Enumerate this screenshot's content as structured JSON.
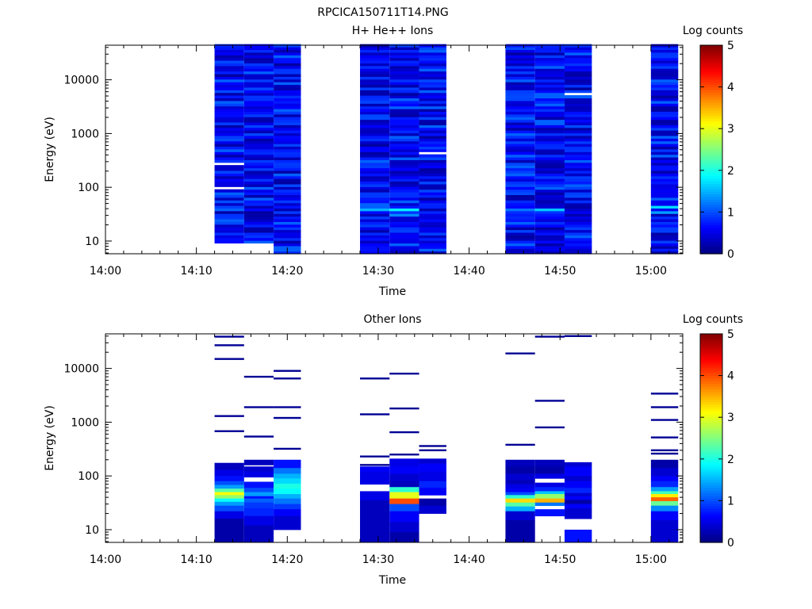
{
  "figure_title": "RPCICA150711T14.PNG",
  "chart_data": [
    {
      "type": "heatmap",
      "title": "H+ He++ Ions",
      "xlabel": "Time",
      "ylabel": "Energy (eV)",
      "y_scale": "log",
      "ylim": [
        5.8,
        44000
      ],
      "x_ticks": [
        "14:00",
        "14:10",
        "14:20",
        "14:30",
        "14:40",
        "14:50",
        "15:00"
      ],
      "y_ticks": [
        {
          "value": 10,
          "label": "10"
        },
        {
          "value": 100,
          "label": "100"
        },
        {
          "value": 1000,
          "label": "1000"
        },
        {
          "value": 10000,
          "label": "10000"
        }
      ],
      "colorbar": {
        "label": "Log counts",
        "min": 0,
        "max": 5,
        "ticks": [
          "0",
          "1",
          "2",
          "3",
          "4",
          "5"
        ]
      },
      "columns": [
        {
          "start": "14:12:00",
          "end": "14:15:15",
          "gaps": [
            [
              9.4,
              5.8
            ]
          ],
          "features": [
            {
              "e": 270,
              "v": -1
            },
            {
              "e": 100,
              "v": -1
            },
            {
              "e": 55,
              "v": 1.0
            }
          ]
        },
        {
          "start": "14:15:15",
          "end": "14:18:30",
          "gaps": [
            [
              9.4,
              5.8
            ]
          ],
          "features": [
            {
              "e": 9.0,
              "v": -1
            }
          ]
        },
        {
          "start": "14:18:30",
          "end": "14:21:30",
          "gaps": [],
          "features": []
        },
        {
          "start": "14:28:00",
          "end": "14:31:15",
          "gaps": [],
          "features": [
            {
              "e": 40,
              "v": 1.5
            }
          ]
        },
        {
          "start": "14:31:15",
          "end": "14:34:30",
          "gaps": [],
          "features": [
            {
              "e": 38,
              "v": 1.8
            },
            {
              "e": 32,
              "v": 1.3
            }
          ]
        },
        {
          "start": "14:34:30",
          "end": "14:37:30",
          "gaps": [],
          "features": [
            {
              "e": 430,
              "v": -1
            }
          ]
        },
        {
          "start": "14:44:00",
          "end": "14:47:15",
          "gaps": [],
          "features": [
            {
              "e": 40,
              "v": 1.2
            }
          ]
        },
        {
          "start": "14:47:15",
          "end": "14:50:30",
          "gaps": [],
          "features": [
            {
              "e": 38,
              "v": 1.6
            }
          ]
        },
        {
          "start": "14:50:30",
          "end": "14:53:30",
          "gaps": [],
          "features": [
            {
              "e": 5400,
              "v": -1
            }
          ]
        },
        {
          "start": "15:00:00",
          "end": "15:03:00",
          "gaps": [],
          "features": [
            {
              "e": 42,
              "v": 1.7
            },
            {
              "e": 36,
              "v": 1.4
            }
          ]
        }
      ]
    },
    {
      "type": "heatmap",
      "title": "Other Ions",
      "xlabel": "Time",
      "ylabel": "Energy (eV)",
      "y_scale": "log",
      "ylim": [
        5.8,
        44000
      ],
      "x_ticks": [
        "14:00",
        "14:10",
        "14:20",
        "14:30",
        "14:40",
        "14:50",
        "15:00"
      ],
      "y_ticks": [
        {
          "value": 10,
          "label": "10"
        },
        {
          "value": 100,
          "label": "100"
        },
        {
          "value": 1000,
          "label": "1000"
        },
        {
          "value": 10000,
          "label": "10000"
        }
      ],
      "colorbar": {
        "label": "Log counts",
        "min": 0,
        "max": 5,
        "ticks": [
          "0",
          "1",
          "2",
          "3",
          "4",
          "5"
        ]
      },
      "columns": [
        {
          "start": "14:12:00",
          "end": "14:15:15",
          "lines": [
            39000,
            27000,
            15000,
            1300,
            680
          ],
          "profile": [
            [
              175,
              0.3
            ],
            [
              130,
              0.5
            ],
            [
              100,
              0.7
            ],
            [
              80,
              1.0
            ],
            [
              68,
              1.4
            ],
            [
              58,
              2.3
            ],
            [
              50,
              3.1
            ],
            [
              44,
              2.6
            ],
            [
              38,
              1.9
            ],
            [
              33,
              1.4
            ],
            [
              28,
              1.0
            ],
            [
              22,
              0.5
            ],
            [
              16,
              0.2
            ],
            [
              10,
              0.2
            ],
            [
              5.8,
              0.3
            ]
          ]
        },
        {
          "start": "14:15:15",
          "end": "14:18:30",
          "lines": [
            7000,
            1900,
            540
          ],
          "profile": [
            [
              200,
              0.3
            ],
            [
              160,
              -1
            ],
            [
              150,
              0.4
            ],
            [
              120,
              0.5
            ],
            [
              95,
              -1
            ],
            [
              78,
              0.7
            ],
            [
              60,
              1.0
            ],
            [
              50,
              1.4
            ],
            [
              42,
              0.7
            ],
            [
              38,
              1.1
            ],
            [
              32,
              0.9
            ],
            [
              25,
              0.8
            ],
            [
              18,
              0.5
            ],
            [
              12,
              0.3
            ],
            [
              5.8,
              0.2
            ]
          ]
        },
        {
          "start": "14:18:30",
          "end": "14:21:30",
          "lines": [
            9000,
            6500,
            1900,
            1200,
            320
          ],
          "profile": [
            [
              200,
              0.7
            ],
            [
              140,
              1.2
            ],
            [
              110,
              1.5
            ],
            [
              90,
              1.7
            ],
            [
              72,
              2.0
            ],
            [
              58,
              1.9
            ],
            [
              46,
              1.5
            ],
            [
              38,
              1.2
            ],
            [
              30,
              0.9
            ],
            [
              24,
              0.6
            ],
            [
              18,
              0.4
            ],
            [
              10,
              0.2
            ]
          ]
        },
        {
          "start": "14:28:00",
          "end": "14:31:15",
          "lines": [
            6500,
            1400,
            230,
            160
          ],
          "profile": [
            [
              210,
              -1
            ],
            [
              150,
              0.6
            ],
            [
              120,
              0.5
            ],
            [
              90,
              0.5
            ],
            [
              70,
              -1
            ],
            [
              52,
              0.5
            ],
            [
              35,
              0.3
            ],
            [
              20,
              0.3
            ],
            [
              5.8,
              0.2
            ]
          ]
        },
        {
          "start": "14:31:15",
          "end": "14:34:30",
          "lines": [
            8000,
            1800,
            650,
            250
          ],
          "profile": [
            [
              210,
              0.5
            ],
            [
              150,
              0.6
            ],
            [
              110,
              0.4
            ],
            [
              80,
              0.3
            ],
            [
              62,
              2.1
            ],
            [
              50,
              3.0
            ],
            [
              38,
              4.0
            ],
            [
              30,
              1.0
            ],
            [
              22,
              0.6
            ],
            [
              14,
              0.4
            ],
            [
              9,
              0.2
            ],
            [
              5.8,
              -1
            ]
          ]
        },
        {
          "start": "14:34:30",
          "end": "14:37:30",
          "lines": [
            360,
            300
          ],
          "profile": [
            [
              210,
              0.4
            ],
            [
              170,
              0.6
            ],
            [
              120,
              0.5
            ],
            [
              80,
              0.8
            ],
            [
              60,
              0.6
            ],
            [
              44,
              -1
            ],
            [
              38,
              0.2
            ],
            [
              28,
              0.4
            ],
            [
              20,
              -1
            ]
          ]
        },
        {
          "start": "14:44:00",
          "end": "14:47:15",
          "lines": [
            19000,
            380
          ],
          "profile": [
            [
              200,
              0.3
            ],
            [
              150,
              0.2
            ],
            [
              110,
              0.4
            ],
            [
              85,
              0.3
            ],
            [
              70,
              0.5
            ],
            [
              58,
              0.6
            ],
            [
              50,
              1.0
            ],
            [
              44,
              2.1
            ],
            [
              38,
              3.3
            ],
            [
              32,
              2.3
            ],
            [
              27,
              1.5
            ],
            [
              22,
              0.4
            ],
            [
              15,
              0.2
            ],
            [
              5.8,
              0.1
            ]
          ]
        },
        {
          "start": "14:47:15",
          "end": "14:50:30",
          "lines": [
            39000,
            2500,
            800
          ],
          "profile": [
            [
              200,
              0.3
            ],
            [
              150,
              0.2
            ],
            [
              110,
              0.5
            ],
            [
              90,
              -1
            ],
            [
              75,
              0.5
            ],
            [
              62,
              0.8
            ],
            [
              52,
              1.6
            ],
            [
              46,
              2.6
            ],
            [
              38,
              3.5
            ],
            [
              32,
              1.2
            ],
            [
              28,
              -1
            ],
            [
              24,
              0.7
            ],
            [
              18,
              -1
            ],
            [
              12,
              -1
            ],
            [
              5.8,
              -1
            ]
          ]
        },
        {
          "start": "14:50:30",
          "end": "14:53:30",
          "lines": [
            40000
          ],
          "profile": [
            [
              200,
              -1
            ],
            [
              180,
              0.4
            ],
            [
              150,
              0.6
            ],
            [
              100,
              0.4
            ],
            [
              80,
              0.6
            ],
            [
              60,
              0.8
            ],
            [
              48,
              0.4
            ],
            [
              42,
              0.6
            ],
            [
              36,
              0.2
            ],
            [
              30,
              0.6
            ],
            [
              25,
              0.4
            ],
            [
              16,
              -1
            ],
            [
              10,
              0.7
            ],
            [
              5.8,
              -1
            ]
          ]
        },
        {
          "start": "15:00:00",
          "end": "15:03:00",
          "lines": [
            3400,
            1900,
            1100,
            520,
            300,
            260
          ],
          "profile": [
            [
              200,
              0.2
            ],
            [
              140,
              0.4
            ],
            [
              100,
              0.6
            ],
            [
              80,
              0.8
            ],
            [
              62,
              1.4
            ],
            [
              52,
              2.2
            ],
            [
              46,
              3.2
            ],
            [
              40,
              3.9
            ],
            [
              34,
              2.4
            ],
            [
              28,
              1.3
            ],
            [
              22,
              0.6
            ],
            [
              15,
              0.4
            ],
            [
              5.8,
              0.2
            ]
          ]
        }
      ]
    }
  ]
}
